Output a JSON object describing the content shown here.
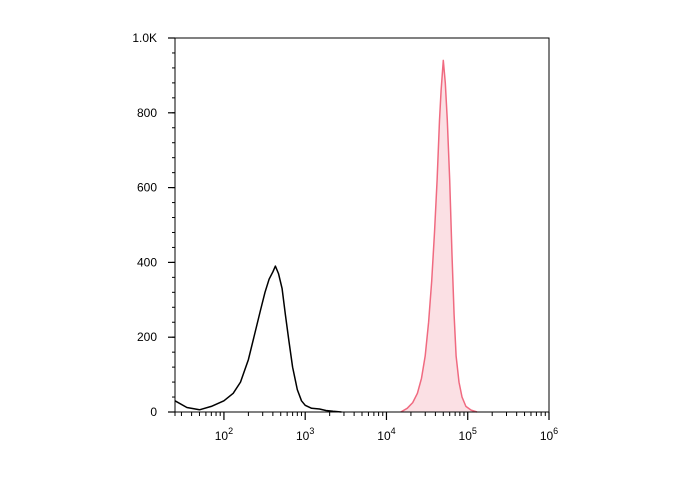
{
  "chart_data": {
    "type": "area",
    "x_scale": "log",
    "y_scale": "linear",
    "xlim": [
      25,
      1000000
    ],
    "ylim": [
      0,
      1000
    ],
    "y_ticks": [
      {
        "value": 0,
        "label": "0"
      },
      {
        "value": 200,
        "label": "200"
      },
      {
        "value": 400,
        "label": "400"
      },
      {
        "value": 600,
        "label": "600"
      },
      {
        "value": 800,
        "label": "800"
      },
      {
        "value": 1000,
        "label": "1.0K"
      }
    ],
    "x_ticks": [
      {
        "value": 100,
        "base": "10",
        "exp": "2"
      },
      {
        "value": 1000,
        "base": "10",
        "exp": "3"
      },
      {
        "value": 10000,
        "base": "10",
        "exp": "4"
      },
      {
        "value": 100000,
        "base": "10",
        "exp": "5"
      },
      {
        "value": 1000000,
        "base": "10",
        "exp": "6"
      }
    ],
    "grid": false,
    "series": [
      {
        "style": "outline",
        "color": "#000000",
        "x": [
          25,
          35,
          50,
          70,
          100,
          130,
          160,
          200,
          240,
          280,
          320,
          360,
          400,
          430,
          470,
          520,
          570,
          630,
          700,
          800,
          900,
          1000,
          1200,
          1500,
          1800,
          2200,
          2800
        ],
        "y": [
          30,
          12,
          6,
          15,
          30,
          50,
          80,
          140,
          210,
          270,
          320,
          355,
          375,
          390,
          370,
          330,
          260,
          190,
          120,
          60,
          30,
          18,
          10,
          8,
          4,
          2,
          0
        ]
      },
      {
        "style": "filled",
        "color": "#f06a80",
        "fill": "#fbe0e4",
        "x": [
          15000,
          18000,
          21000,
          24000,
          27000,
          30000,
          33000,
          36000,
          39000,
          42000,
          45000,
          47000,
          50000,
          53000,
          56000,
          60000,
          64000,
          68000,
          72000,
          78000,
          85000,
          95000,
          110000,
          130000
        ],
        "y": [
          0,
          10,
          25,
          50,
          90,
          150,
          240,
          350,
          480,
          620,
          780,
          860,
          940,
          880,
          780,
          620,
          420,
          260,
          150,
          80,
          40,
          15,
          5,
          0
        ]
      }
    ]
  }
}
